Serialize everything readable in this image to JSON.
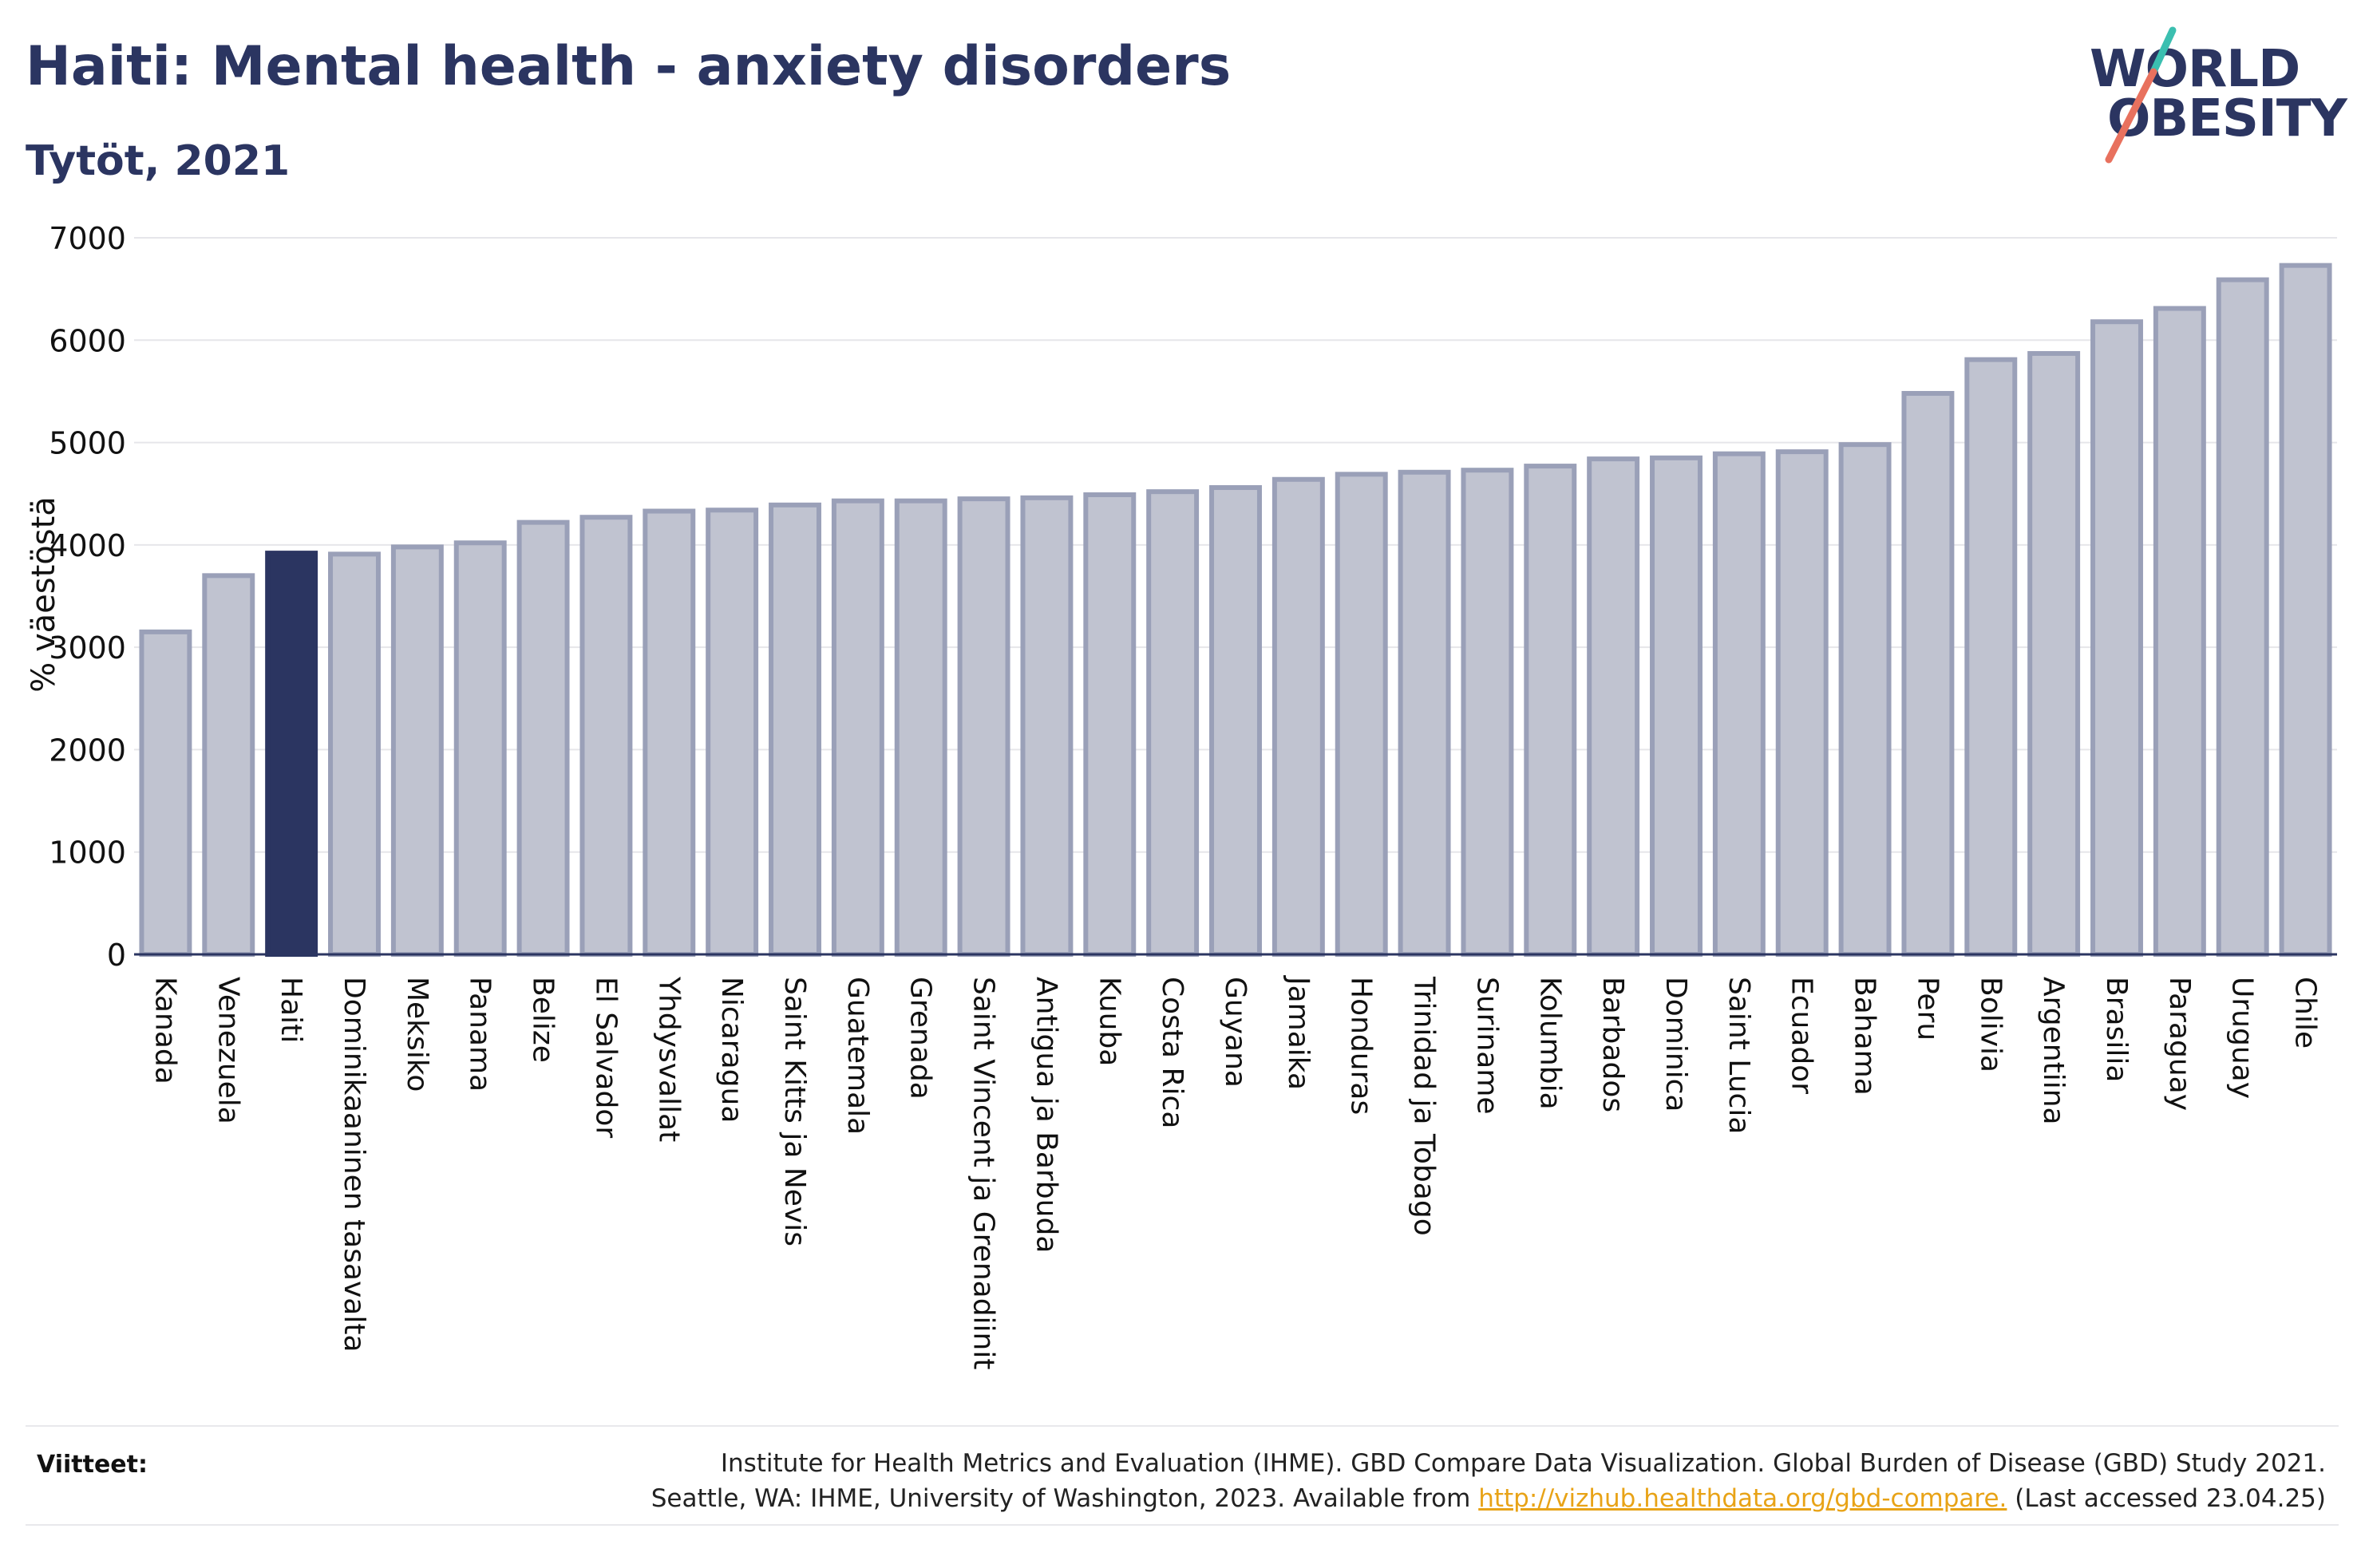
{
  "header": {
    "title": "Haiti: Mental health - anxiety disorders",
    "subtitle": "Tytöt, 2021"
  },
  "logo": {
    "line1": "WORLD",
    "line2": "OBESITY"
  },
  "chart_data": {
    "type": "bar",
    "title": "Haiti: Mental health - anxiety disorders",
    "subtitle": "Tytöt, 2021",
    "xlabel": "",
    "ylabel": "% väestöstä",
    "ylim": [
      0,
      7000
    ],
    "yticks": [
      0,
      1000,
      2000,
      3000,
      4000,
      5000,
      6000,
      7000
    ],
    "grid": true,
    "highlight": "Haiti",
    "colors": {
      "bar": "#c0c3d0",
      "bar_border": "#9aa0b8",
      "highlight": "#2b3561"
    },
    "categories": [
      "Kanada",
      "Venezuela",
      "Haiti",
      "Dominikaaninen tasavalta",
      "Meksiko",
      "Panama",
      "Belize",
      "El Salvador",
      "Yhdysvallat",
      "Nicaragua",
      "Saint Kitts ja Nevis",
      "Guatemala",
      "Grenada",
      "Saint Vincent ja Grenadiinit",
      "Antigua ja Barbuda",
      "Kuuba",
      "Costa Rica",
      "Guyana",
      "Jamaika",
      "Honduras",
      "Trinidad ja Tobago",
      "Suriname",
      "Kolumbia",
      "Barbados",
      "Dominica",
      "Saint Lucia",
      "Ecuador",
      "Bahama",
      "Peru",
      "Bolivia",
      "Argentiina",
      "Brasilia",
      "Paraguay",
      "Uruguay",
      "Chile"
    ],
    "values": [
      3150,
      3700,
      3920,
      3910,
      3980,
      4020,
      4220,
      4270,
      4330,
      4340,
      4390,
      4430,
      4430,
      4450,
      4460,
      4490,
      4520,
      4560,
      4640,
      4690,
      4710,
      4730,
      4770,
      4840,
      4850,
      4890,
      4910,
      4980,
      5480,
      5810,
      5870,
      6180,
      6310,
      6590,
      6730
    ]
  },
  "footer": {
    "label": "Viitteet:",
    "line1": "Institute for Health Metrics and Evaluation (IHME). GBD Compare Data Visualization. Global Burden of Disease (GBD) Study 2021.",
    "line2_pre": "Seattle, WA: IHME, University of Washington, 2023. Available from ",
    "link": "http://vizhub.healthdata.org/gbd-compare.",
    "line2_post": " (Last accessed 23.04.25)"
  }
}
